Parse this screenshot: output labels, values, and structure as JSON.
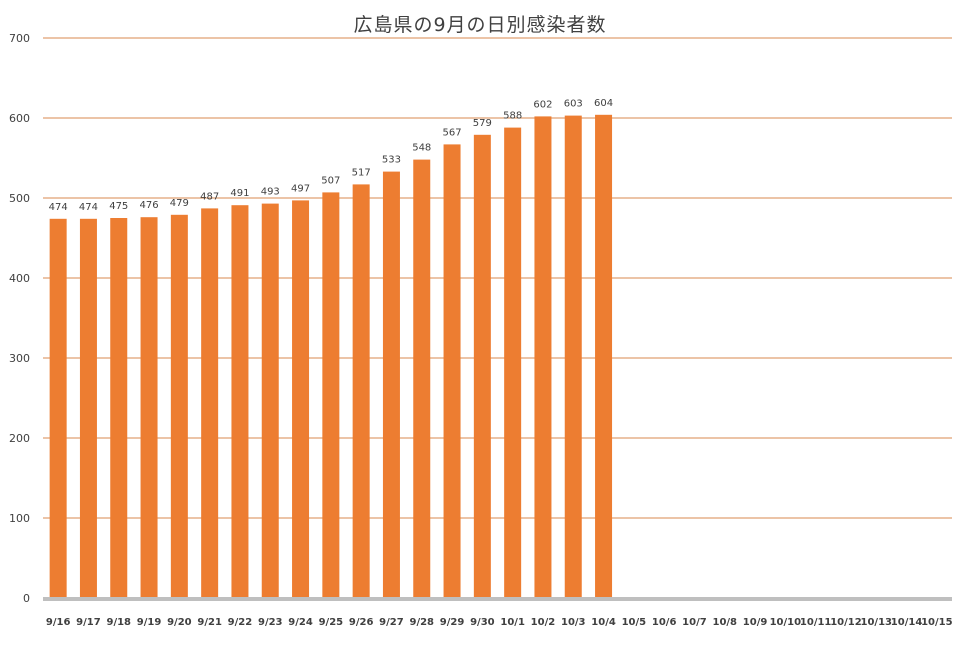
{
  "chart_data": {
    "type": "bar",
    "title": "広島県の9月の日別感染者数",
    "xlabel": "",
    "ylabel": "",
    "ylim": [
      0,
      700
    ],
    "yticks": [
      0,
      100,
      200,
      300,
      400,
      500,
      600,
      700
    ],
    "grid": true,
    "categories": [
      "9/16",
      "9/17",
      "9/18",
      "9/19",
      "9/20",
      "9/21",
      "9/22",
      "9/23",
      "9/24",
      "9/25",
      "9/26",
      "9/27",
      "9/28",
      "9/29",
      "9/30",
      "10/1",
      "10/2",
      "10/3",
      "10/4",
      "10/5",
      "10/6",
      "10/7",
      "10/8",
      "10/9",
      "10/10",
      "10/11",
      "10/12",
      "10/13",
      "10/14",
      "10/15"
    ],
    "values": [
      474,
      474,
      475,
      476,
      479,
      487,
      491,
      493,
      497,
      507,
      517,
      533,
      548,
      567,
      579,
      588,
      602,
      603,
      604,
      null,
      null,
      null,
      null,
      null,
      null,
      null,
      null,
      null,
      null,
      null
    ],
    "colors": {
      "bar": "#ed7d31",
      "grid": "#d8894f",
      "axis": "#bfbfbf",
      "text": "#404040"
    }
  }
}
